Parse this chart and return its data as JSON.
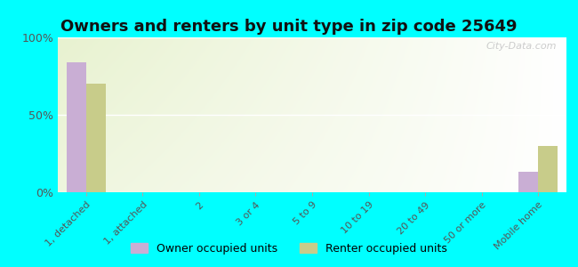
{
  "title": "Owners and renters by unit type in zip code 25649",
  "categories": [
    "1, detached",
    "1, attached",
    "2",
    "3 or 4",
    "5 to 9",
    "10 to 19",
    "20 to 49",
    "50 or more",
    "Mobile home"
  ],
  "owner_values": [
    84,
    0,
    0,
    0,
    0,
    0,
    0,
    0,
    13
  ],
  "renter_values": [
    70,
    0,
    0,
    0,
    0,
    0,
    0,
    0,
    30
  ],
  "owner_color": "#c9aed4",
  "renter_color": "#c8cc8a",
  "background_color": "#00ffff",
  "plot_bg_color": "#e8f2d0",
  "bar_width": 0.35,
  "ylim": [
    0,
    100
  ],
  "yticks": [
    0,
    50,
    100
  ],
  "ytick_labels": [
    "0%",
    "50%",
    "100%"
  ],
  "title_fontsize": 13,
  "watermark": "City-Data.com",
  "legend_owner": "Owner occupied units",
  "legend_renter": "Renter occupied units"
}
